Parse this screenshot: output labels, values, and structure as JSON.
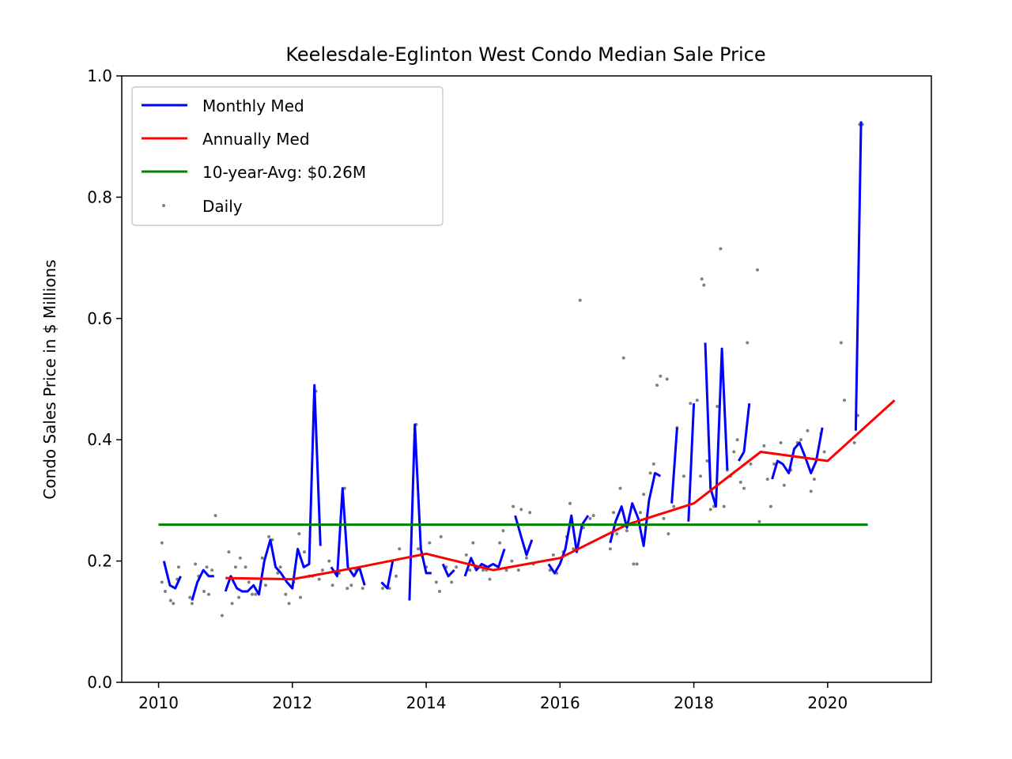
{
  "chart_data": {
    "type": "line",
    "title": "Keelesdale-Eglinton West Condo Median Sale Price",
    "xlabel": "",
    "ylabel": "Condo Sales Price in $ Millions",
    "xlim": [
      2009.45,
      2021.55
    ],
    "ylim": [
      0.0,
      1.0
    ],
    "x_ticks": [
      2010,
      2012,
      2014,
      2016,
      2018,
      2020
    ],
    "y_ticks": [
      0.0,
      0.2,
      0.4,
      0.6,
      0.8,
      1.0
    ],
    "y_tick_labels": [
      "0.0",
      "0.2",
      "0.4",
      "0.6",
      "0.8",
      "1.0"
    ],
    "legend_position": "upper-left",
    "colors": {
      "monthly": "#0000ff",
      "annual": "#ff0000",
      "avg": "#008000",
      "daily": "#808080"
    },
    "series": [
      {
        "name": "Monthly Med",
        "style": "line",
        "segments": [
          [
            [
              2010.08,
              0.2
            ],
            [
              2010.17,
              0.16
            ],
            [
              2010.25,
              0.155
            ],
            [
              2010.33,
              0.175
            ]
          ],
          [
            [
              2010.5,
              0.135
            ],
            [
              2010.58,
              0.165
            ],
            [
              2010.67,
              0.185
            ],
            [
              2010.75,
              0.175
            ],
            [
              2010.83,
              0.175
            ]
          ],
          [
            [
              2011.0,
              0.15
            ],
            [
              2011.08,
              0.175
            ],
            [
              2011.17,
              0.155
            ],
            [
              2011.25,
              0.15
            ],
            [
              2011.33,
              0.15
            ],
            [
              2011.42,
              0.16
            ],
            [
              2011.5,
              0.145
            ],
            [
              2011.58,
              0.2
            ],
            [
              2011.67,
              0.235
            ],
            [
              2011.75,
              0.19
            ],
            [
              2011.83,
              0.18
            ],
            [
              2011.92,
              0.165
            ],
            [
              2012.0,
              0.155
            ],
            [
              2012.08,
              0.22
            ],
            [
              2012.17,
              0.19
            ],
            [
              2012.25,
              0.195
            ],
            [
              2012.33,
              0.49
            ],
            [
              2012.42,
              0.225
            ]
          ],
          [
            [
              2012.58,
              0.19
            ],
            [
              2012.67,
              0.175
            ],
            [
              2012.75,
              0.32
            ],
            [
              2012.83,
              0.19
            ],
            [
              2012.92,
              0.175
            ],
            [
              2013.0,
              0.19
            ],
            [
              2013.08,
              0.16
            ]
          ],
          [
            [
              2013.33,
              0.165
            ],
            [
              2013.42,
              0.155
            ],
            [
              2013.5,
              0.2
            ]
          ],
          [
            [
              2013.75,
              0.135
            ],
            [
              2013.83,
              0.425
            ],
            [
              2013.92,
              0.22
            ],
            [
              2014.0,
              0.18
            ],
            [
              2014.08,
              0.18
            ]
          ],
          [
            [
              2014.25,
              0.195
            ],
            [
              2014.33,
              0.175
            ],
            [
              2014.42,
              0.185
            ]
          ],
          [
            [
              2014.58,
              0.175
            ],
            [
              2014.67,
              0.205
            ],
            [
              2014.75,
              0.185
            ],
            [
              2014.83,
              0.195
            ],
            [
              2014.92,
              0.19
            ],
            [
              2015.0,
              0.195
            ],
            [
              2015.08,
              0.19
            ],
            [
              2015.17,
              0.22
            ]
          ],
          [
            [
              2015.33,
              0.275
            ],
            [
              2015.42,
              0.24
            ],
            [
              2015.5,
              0.21
            ],
            [
              2015.58,
              0.235
            ]
          ],
          [
            [
              2015.83,
              0.195
            ],
            [
              2015.92,
              0.18
            ],
            [
              2016.0,
              0.195
            ],
            [
              2016.08,
              0.22
            ],
            [
              2016.17,
              0.275
            ],
            [
              2016.25,
              0.215
            ],
            [
              2016.33,
              0.26
            ],
            [
              2016.42,
              0.275
            ]
          ],
          [
            [
              2016.75,
              0.23
            ],
            [
              2016.83,
              0.265
            ],
            [
              2016.92,
              0.29
            ],
            [
              2017.0,
              0.255
            ],
            [
              2017.08,
              0.295
            ],
            [
              2017.17,
              0.27
            ],
            [
              2017.25,
              0.225
            ],
            [
              2017.33,
              0.3
            ],
            [
              2017.42,
              0.345
            ],
            [
              2017.5,
              0.34
            ]
          ],
          [
            [
              2017.67,
              0.295
            ],
            [
              2017.75,
              0.42
            ]
          ],
          [
            [
              2017.92,
              0.265
            ],
            [
              2018.0,
              0.46
            ]
          ],
          [
            [
              2018.17,
              0.56
            ],
            [
              2018.25,
              0.32
            ],
            [
              2018.33,
              0.29
            ],
            [
              2018.42,
              0.55
            ],
            [
              2018.5,
              0.35
            ]
          ],
          [
            [
              2018.67,
              0.365
            ],
            [
              2018.75,
              0.38
            ],
            [
              2018.83,
              0.46
            ]
          ],
          [
            [
              2019.17,
              0.335
            ],
            [
              2019.25,
              0.365
            ],
            [
              2019.33,
              0.36
            ],
            [
              2019.42,
              0.345
            ],
            [
              2019.5,
              0.385
            ],
            [
              2019.58,
              0.395
            ],
            [
              2019.67,
              0.37
            ],
            [
              2019.75,
              0.345
            ],
            [
              2019.83,
              0.365
            ],
            [
              2019.92,
              0.42
            ]
          ],
          [
            [
              2020.42,
              0.415
            ],
            [
              2020.5,
              0.925
            ]
          ]
        ]
      },
      {
        "name": "Annually Med",
        "style": "line",
        "points": [
          [
            2011,
            0.172
          ],
          [
            2012,
            0.17
          ],
          [
            2013,
            0.19
          ],
          [
            2014,
            0.212
          ],
          [
            2015,
            0.185
          ],
          [
            2016,
            0.205
          ],
          [
            2017,
            0.26
          ],
          [
            2018,
            0.295
          ],
          [
            2019,
            0.38
          ],
          [
            2020,
            0.365
          ],
          [
            2021,
            0.465
          ]
        ]
      },
      {
        "name": "10-year-Avg: $0.26M",
        "style": "line",
        "points": [
          [
            2010,
            0.26
          ],
          [
            2020.6,
            0.26
          ]
        ]
      },
      {
        "name": "Daily",
        "style": "scatter",
        "points": [
          [
            2010.05,
            0.23
          ],
          [
            2010.05,
            0.165
          ],
          [
            2010.1,
            0.15
          ],
          [
            2010.18,
            0.135
          ],
          [
            2010.22,
            0.13
          ],
          [
            2010.28,
            0.17
          ],
          [
            2010.3,
            0.19
          ],
          [
            2010.47,
            0.14
          ],
          [
            2010.5,
            0.13
          ],
          [
            2010.55,
            0.195
          ],
          [
            2010.6,
            0.175
          ],
          [
            2010.68,
            0.15
          ],
          [
            2010.72,
            0.19
          ],
          [
            2010.75,
            0.145
          ],
          [
            2010.8,
            0.185
          ],
          [
            2010.85,
            0.275
          ],
          [
            2010.95,
            0.11
          ],
          [
            2011.05,
            0.215
          ],
          [
            2011.1,
            0.13
          ],
          [
            2011.15,
            0.19
          ],
          [
            2011.2,
            0.14
          ],
          [
            2011.22,
            0.205
          ],
          [
            2011.3,
            0.19
          ],
          [
            2011.35,
            0.165
          ],
          [
            2011.4,
            0.145
          ],
          [
            2011.45,
            0.145
          ],
          [
            2011.55,
            0.205
          ],
          [
            2011.6,
            0.16
          ],
          [
            2011.65,
            0.24
          ],
          [
            2011.7,
            0.235
          ],
          [
            2011.78,
            0.18
          ],
          [
            2011.82,
            0.19
          ],
          [
            2011.9,
            0.145
          ],
          [
            2011.95,
            0.13
          ],
          [
            2012.02,
            0.165
          ],
          [
            2012.1,
            0.245
          ],
          [
            2012.12,
            0.14
          ],
          [
            2012.18,
            0.215
          ],
          [
            2012.25,
            0.175
          ],
          [
            2012.3,
            0.175
          ],
          [
            2012.35,
            0.48
          ],
          [
            2012.4,
            0.17
          ],
          [
            2012.45,
            0.185
          ],
          [
            2012.55,
            0.2
          ],
          [
            2012.6,
            0.16
          ],
          [
            2012.7,
            0.18
          ],
          [
            2012.78,
            0.32
          ],
          [
            2012.82,
            0.155
          ],
          [
            2012.88,
            0.16
          ],
          [
            2012.95,
            0.185
          ],
          [
            2013.05,
            0.155
          ],
          [
            2013.35,
            0.155
          ],
          [
            2013.45,
            0.155
          ],
          [
            2013.55,
            0.175
          ],
          [
            2013.6,
            0.22
          ],
          [
            2013.85,
            0.425
          ],
          [
            2013.88,
            0.22
          ],
          [
            2013.92,
            0.21
          ],
          [
            2014.0,
            0.19
          ],
          [
            2014.05,
            0.23
          ],
          [
            2014.15,
            0.165
          ],
          [
            2014.2,
            0.15
          ],
          [
            2014.22,
            0.24
          ],
          [
            2014.3,
            0.19
          ],
          [
            2014.38,
            0.165
          ],
          [
            2014.45,
            0.19
          ],
          [
            2014.6,
            0.21
          ],
          [
            2014.65,
            0.185
          ],
          [
            2014.7,
            0.23
          ],
          [
            2014.8,
            0.19
          ],
          [
            2014.85,
            0.185
          ],
          [
            2014.9,
            0.185
          ],
          [
            2014.95,
            0.17
          ],
          [
            2015.1,
            0.23
          ],
          [
            2015.15,
            0.25
          ],
          [
            2015.2,
            0.185
          ],
          [
            2015.28,
            0.2
          ],
          [
            2015.3,
            0.29
          ],
          [
            2015.38,
            0.185
          ],
          [
            2015.42,
            0.285
          ],
          [
            2015.5,
            0.205
          ],
          [
            2015.55,
            0.28
          ],
          [
            2015.6,
            0.195
          ],
          [
            2015.85,
            0.185
          ],
          [
            2015.9,
            0.21
          ],
          [
            2015.95,
            0.18
          ],
          [
            2016.05,
            0.215
          ],
          [
            2016.1,
            0.24
          ],
          [
            2016.15,
            0.295
          ],
          [
            2016.2,
            0.22
          ],
          [
            2016.3,
            0.63
          ],
          [
            2016.35,
            0.255
          ],
          [
            2016.45,
            0.27
          ],
          [
            2016.5,
            0.275
          ],
          [
            2016.75,
            0.22
          ],
          [
            2016.8,
            0.28
          ],
          [
            2016.85,
            0.245
          ],
          [
            2016.9,
            0.32
          ],
          [
            2016.95,
            0.535
          ],
          [
            2017.0,
            0.25
          ],
          [
            2017.05,
            0.26
          ],
          [
            2017.1,
            0.195
          ],
          [
            2017.15,
            0.195
          ],
          [
            2017.2,
            0.28
          ],
          [
            2017.25,
            0.31
          ],
          [
            2017.3,
            0.27
          ],
          [
            2017.35,
            0.345
          ],
          [
            2017.4,
            0.36
          ],
          [
            2017.45,
            0.49
          ],
          [
            2017.5,
            0.505
          ],
          [
            2017.55,
            0.27
          ],
          [
            2017.6,
            0.5
          ],
          [
            2017.62,
            0.245
          ],
          [
            2017.7,
            0.29
          ],
          [
            2017.75,
            0.42
          ],
          [
            2017.85,
            0.34
          ],
          [
            2017.95,
            0.46
          ],
          [
            2018.05,
            0.465
          ],
          [
            2018.1,
            0.34
          ],
          [
            2018.12,
            0.665
          ],
          [
            2018.15,
            0.655
          ],
          [
            2018.2,
            0.365
          ],
          [
            2018.25,
            0.285
          ],
          [
            2018.3,
            0.29
          ],
          [
            2018.35,
            0.455
          ],
          [
            2018.4,
            0.715
          ],
          [
            2018.45,
            0.29
          ],
          [
            2018.5,
            0.35
          ],
          [
            2018.55,
            0.34
          ],
          [
            2018.6,
            0.38
          ],
          [
            2018.65,
            0.4
          ],
          [
            2018.7,
            0.33
          ],
          [
            2018.75,
            0.32
          ],
          [
            2018.8,
            0.56
          ],
          [
            2018.85,
            0.36
          ],
          [
            2018.95,
            0.68
          ],
          [
            2018.98,
            0.265
          ],
          [
            2019.05,
            0.39
          ],
          [
            2019.1,
            0.335
          ],
          [
            2019.15,
            0.29
          ],
          [
            2019.2,
            0.36
          ],
          [
            2019.3,
            0.395
          ],
          [
            2019.35,
            0.325
          ],
          [
            2019.45,
            0.35
          ],
          [
            2019.55,
            0.395
          ],
          [
            2019.6,
            0.4
          ],
          [
            2019.7,
            0.415
          ],
          [
            2019.75,
            0.315
          ],
          [
            2019.8,
            0.335
          ],
          [
            2019.9,
            0.41
          ],
          [
            2019.95,
            0.38
          ],
          [
            2020.2,
            0.56
          ],
          [
            2020.25,
            0.465
          ],
          [
            2020.4,
            0.395
          ],
          [
            2020.45,
            0.44
          ],
          [
            2020.48,
            0.92
          ],
          [
            2020.52,
            0.92
          ]
        ]
      }
    ]
  }
}
